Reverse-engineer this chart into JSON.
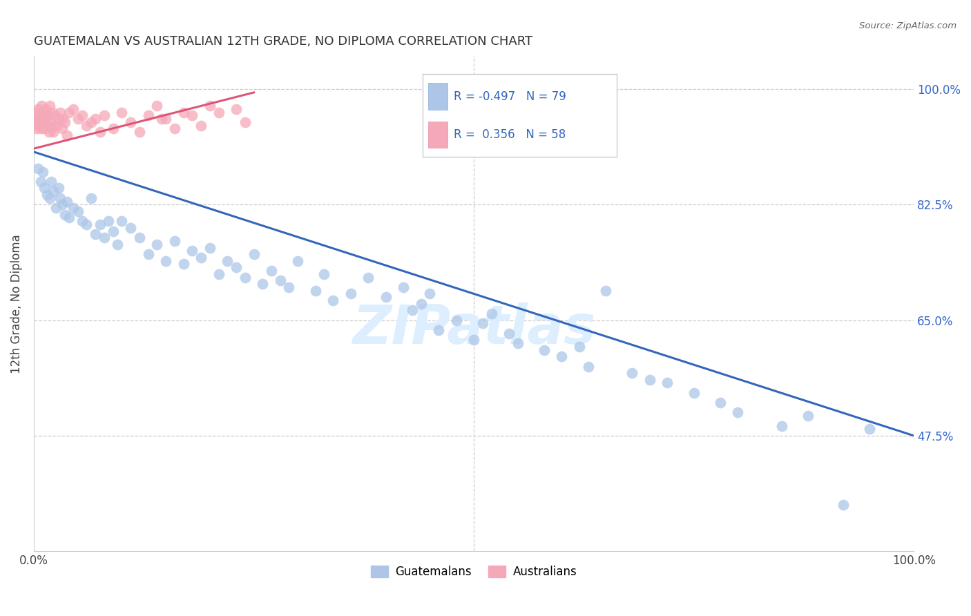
{
  "title": "GUATEMALAN VS AUSTRALIAN 12TH GRADE, NO DIPLOMA CORRELATION CHART",
  "source_text": "Source: ZipAtlas.com",
  "ylabel": "12th Grade, No Diploma",
  "blue_R": -0.497,
  "blue_N": 79,
  "pink_R": 0.356,
  "pink_N": 58,
  "blue_color": "#adc6e8",
  "blue_edge_color": "#adc6e8",
  "blue_line_color": "#3366bb",
  "pink_color": "#f5a8b8",
  "pink_edge_color": "#f5a8b8",
  "pink_line_color": "#dd5577",
  "title_color": "#333333",
  "source_color": "#666666",
  "right_tick_color": "#3366cc",
  "watermark_color": "#ddeeff",
  "ytick_values": [
    47.5,
    65.0,
    82.5,
    100.0
  ],
  "ytick_labels": [
    "47.5%",
    "65.0%",
    "82.5%",
    "100.0%"
  ],
  "xlim": [
    0,
    100
  ],
  "ylim": [
    30,
    105
  ],
  "blue_line_x": [
    0,
    100
  ],
  "blue_line_y": [
    90.5,
    47.5
  ],
  "pink_line_x": [
    0,
    25
  ],
  "pink_line_y": [
    91.0,
    99.5
  ],
  "blue_x": [
    0.5,
    0.8,
    1.0,
    1.2,
    1.5,
    1.8,
    2.0,
    2.2,
    2.5,
    2.8,
    3.0,
    3.2,
    3.5,
    3.8,
    4.0,
    4.5,
    5.0,
    5.5,
    6.0,
    6.5,
    7.0,
    7.5,
    8.0,
    8.5,
    9.0,
    9.5,
    10.0,
    11.0,
    12.0,
    13.0,
    14.0,
    15.0,
    16.0,
    17.0,
    18.0,
    19.0,
    20.0,
    21.0,
    22.0,
    23.0,
    24.0,
    25.0,
    26.0,
    27.0,
    28.0,
    29.0,
    30.0,
    32.0,
    33.0,
    34.0,
    36.0,
    38.0,
    40.0,
    42.0,
    43.0,
    44.0,
    45.0,
    46.0,
    48.0,
    50.0,
    51.0,
    52.0,
    54.0,
    55.0,
    58.0,
    60.0,
    62.0,
    63.0,
    65.0,
    68.0,
    70.0,
    72.0,
    75.0,
    78.0,
    80.0,
    85.0,
    88.0,
    92.0,
    95.0
  ],
  "blue_y": [
    88.0,
    86.0,
    87.5,
    85.0,
    84.0,
    83.5,
    86.0,
    84.5,
    82.0,
    85.0,
    83.5,
    82.5,
    81.0,
    83.0,
    80.5,
    82.0,
    81.5,
    80.0,
    79.5,
    83.5,
    78.0,
    79.5,
    77.5,
    80.0,
    78.5,
    76.5,
    80.0,
    79.0,
    77.5,
    75.0,
    76.5,
    74.0,
    77.0,
    73.5,
    75.5,
    74.5,
    76.0,
    72.0,
    74.0,
    73.0,
    71.5,
    75.0,
    70.5,
    72.5,
    71.0,
    70.0,
    74.0,
    69.5,
    72.0,
    68.0,
    69.0,
    71.5,
    68.5,
    70.0,
    66.5,
    67.5,
    69.0,
    63.5,
    65.0,
    62.0,
    64.5,
    66.0,
    63.0,
    61.5,
    60.5,
    59.5,
    61.0,
    58.0,
    69.5,
    57.0,
    56.0,
    55.5,
    54.0,
    52.5,
    51.0,
    49.0,
    50.5,
    37.0,
    48.5
  ],
  "pink_x": [
    0.2,
    0.3,
    0.4,
    0.5,
    0.6,
    0.7,
    0.8,
    0.9,
    1.0,
    1.1,
    1.2,
    1.3,
    1.4,
    1.5,
    1.6,
    1.7,
    1.8,
    1.9,
    2.0,
    2.1,
    2.2,
    2.4,
    2.6,
    2.8,
    3.0,
    3.2,
    3.5,
    3.8,
    4.0,
    4.5,
    5.0,
    5.5,
    6.0,
    7.0,
    7.5,
    8.0,
    9.0,
    10.0,
    11.0,
    12.0,
    13.0,
    14.0,
    15.0,
    17.0,
    19.0,
    21.0,
    23.0,
    24.0,
    14.5,
    16.0,
    18.0,
    20.0,
    6.5,
    3.3,
    2.3,
    1.05,
    0.55,
    0.35
  ],
  "pink_y": [
    95.0,
    96.5,
    94.5,
    97.0,
    95.5,
    96.0,
    94.0,
    97.5,
    95.0,
    96.5,
    94.0,
    97.0,
    95.5,
    94.5,
    96.0,
    93.5,
    97.5,
    95.0,
    94.0,
    96.5,
    93.5,
    96.0,
    94.5,
    95.5,
    96.5,
    94.0,
    95.0,
    93.0,
    96.5,
    97.0,
    95.5,
    96.0,
    94.5,
    95.5,
    93.5,
    96.0,
    94.0,
    96.5,
    95.0,
    93.5,
    96.0,
    97.5,
    95.5,
    96.5,
    94.5,
    96.5,
    97.0,
    95.0,
    95.5,
    94.0,
    96.0,
    97.5,
    95.0,
    95.5,
    94.5,
    96.0,
    95.5,
    94.0
  ]
}
